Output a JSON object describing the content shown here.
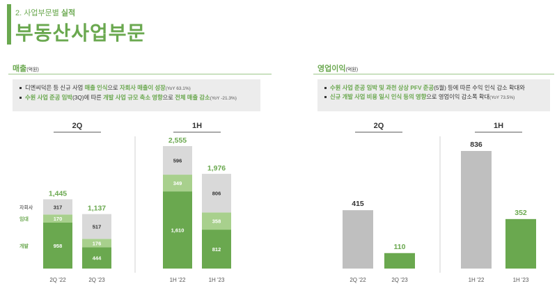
{
  "header": {
    "section_label_prefix": "2. 사업부문별 ",
    "section_label_bold": "실적",
    "title": "부동산사업부문"
  },
  "revenue_panel": {
    "title": "매출",
    "unit": "(억원)",
    "notes": [
      {
        "parts": [
          {
            "text": "디엔씨덕은 등 신규 사업 ",
            "hl": false
          },
          {
            "text": "매출 인식",
            "hl": true
          },
          {
            "text": "으로 ",
            "hl": false
          },
          {
            "text": "자회사 매출이 성장",
            "hl": true
          }
        ],
        "yoy": "(YoY 63.1%)"
      },
      {
        "parts": [
          {
            "text": "수원 사업 준공 임박",
            "hl": true
          },
          {
            "text": "(3Q)에 따른 ",
            "hl": false
          },
          {
            "text": "개발 사업 규모 축소 영향",
            "hl": true
          },
          {
            "text": "으로 ",
            "hl": false
          },
          {
            "text": "전체 매출 감소",
            "hl": true
          }
        ],
        "yoy": "(YoY -21.3%)"
      }
    ]
  },
  "op_panel": {
    "title": "영업이익",
    "unit": "(억원)",
    "notes": [
      {
        "parts": [
          {
            "text": "수원 사업 준공 임박 및 과천 상상 PFV 준공",
            "hl": true
          },
          {
            "text": "(5월) 등에 따른 수익 인식 감소 확대와",
            "hl": false
          }
        ],
        "yoy": ""
      },
      {
        "parts": [
          {
            "text": "신규 개발 사업 비용 일시 인식 등의 영향",
            "hl": true
          },
          {
            "text": "으로 영업이익 감소폭 확대",
            "hl": false
          }
        ],
        "yoy": "(YoY 73.5%)"
      }
    ]
  },
  "colors": {
    "green_dark": "#6aa84f",
    "green_light": "#a8d08d",
    "gray_light": "#d9d9d9",
    "gray_mid": "#bfbfbf",
    "text": "#333333"
  },
  "chart_data": [
    {
      "type": "bar",
      "stacked": true,
      "group_labels": [
        "2Q",
        "1H"
      ],
      "categories": [
        "2Q '22",
        "2Q '23",
        "1H '22",
        "1H '23"
      ],
      "series": [
        {
          "name": "개발",
          "values": [
            958,
            444,
            1610,
            812
          ]
        },
        {
          "name": "임대",
          "values": [
            170,
            176,
            349,
            358
          ]
        },
        {
          "name": "자회사",
          "values": [
            317,
            517,
            596,
            806
          ]
        }
      ],
      "totals": [
        1445,
        1137,
        2555,
        1976
      ],
      "total_labels": [
        "1,445",
        "1,137",
        "2,555",
        "1,976"
      ],
      "segment_labels": [
        [
          "958",
          "444",
          "1,610",
          "812"
        ],
        [
          "170",
          "176",
          "349",
          "358"
        ],
        [
          "317",
          "517",
          "596",
          "806"
        ]
      ],
      "ylim": [
        0,
        2555
      ]
    },
    {
      "type": "bar",
      "group_labels": [
        "2Q",
        "1H"
      ],
      "categories": [
        "2Q '22",
        "2Q '23",
        "1H '22",
        "1H '23"
      ],
      "values": [
        415,
        110,
        836,
        352
      ],
      "value_labels": [
        "415",
        "110",
        "836",
        "352"
      ],
      "ylim": [
        0,
        836
      ]
    }
  ]
}
